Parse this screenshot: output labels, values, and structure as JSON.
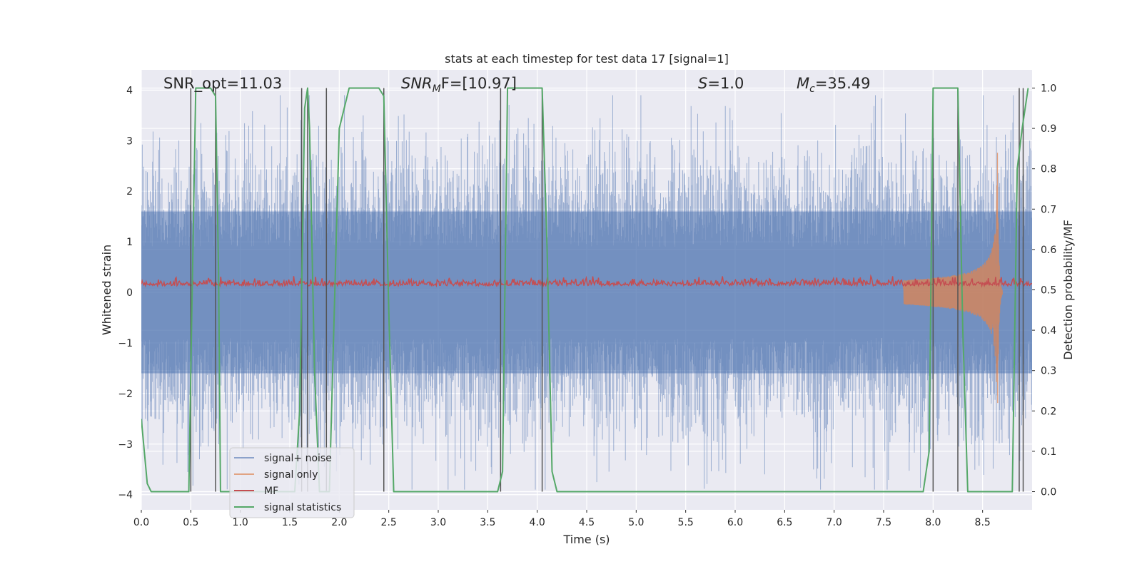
{
  "chart_data": {
    "type": "line",
    "title": "stats at each timestep for test data 17 [signal=1]",
    "xlabel": "Time (s)",
    "ylabel": "Whitened strain",
    "y2label": "Detection probability/MF",
    "xlim": [
      0.0,
      9.0
    ],
    "ylim": [
      -4.3,
      4.4
    ],
    "y2lim": [
      -0.045,
      1.045
    ],
    "x_ticks": [
      0.0,
      0.5,
      1.0,
      1.5,
      2.0,
      2.5,
      3.0,
      3.5,
      4.0,
      4.5,
      5.0,
      5.5,
      6.0,
      6.5,
      7.0,
      7.5,
      8.0,
      8.5
    ],
    "x_tick_labels": [
      "0.0",
      "0.5",
      "1.0",
      "1.5",
      "2.0",
      "2.5",
      "3.0",
      "3.5",
      "4.0",
      "4.5",
      "5.0",
      "5.5",
      "6.0",
      "6.5",
      "7.0",
      "7.5",
      "8.0",
      "8.5"
    ],
    "y_ticks": [
      4,
      3,
      2,
      1,
      0,
      -1,
      -2,
      -3,
      -4
    ],
    "y_tick_labels": [
      "4",
      "3",
      "2",
      "1",
      "0",
      "−1",
      "−2",
      "−3",
      "−4"
    ],
    "y2_ticks": [
      1.0,
      0.9,
      0.8,
      0.7,
      0.6,
      0.5,
      0.4,
      0.3,
      0.2,
      0.1,
      0.0
    ],
    "y2_tick_labels": [
      "1.0",
      "0.9",
      "0.8",
      "0.7",
      "0.6",
      "0.5",
      "0.4",
      "0.3",
      "0.2",
      "0.1",
      "0.0"
    ],
    "grid": true,
    "legend_placement": "lower-left",
    "annotations": {
      "snr_opt": "SNR_opt=11.03",
      "snr_mf_var": "SNR",
      "snr_mf_sub": "M",
      "snr_mf_rest": "F=[10.97]",
      "s_var": "S",
      "s_rest": "=1.0",
      "mc_var": "M",
      "mc_sub": "c",
      "mc_rest": "=35.49"
    },
    "series": [
      {
        "name": "signal+ noise",
        "axis": "left",
        "color": "#4c72b0",
        "noise_envelope": {
          "x": [
            0.0,
            9.0
          ],
          "core_band": [
            -1.6,
            1.6
          ],
          "peak_extent": [
            -3.9,
            3.9
          ]
        }
      },
      {
        "name": "signal only",
        "axis": "left",
        "color": "#dd8452",
        "chirp": {
          "start": 7.7,
          "merger": 8.65,
          "end": 8.7,
          "peak_amplitude": 2.8
        }
      },
      {
        "name": "MF",
        "axis": "left",
        "color": "#c44e52",
        "band": [
          0.05,
          0.35
        ]
      },
      {
        "name": "signal statistics",
        "axis": "right",
        "color": "#55a868",
        "x": [
          0.0,
          0.06,
          0.1,
          0.2,
          0.3,
          0.4,
          0.48,
          0.5,
          0.55,
          0.6,
          0.7,
          0.75,
          0.78,
          0.8,
          0.9,
          1.0,
          1.2,
          1.4,
          1.55,
          1.6,
          1.65,
          1.68,
          1.7,
          1.75,
          1.8,
          1.9,
          1.95,
          2.0,
          2.1,
          2.2,
          2.3,
          2.4,
          2.45,
          2.5,
          2.55,
          2.6,
          3.0,
          3.4,
          3.6,
          3.65,
          3.7,
          3.8,
          3.9,
          4.0,
          4.05,
          4.1,
          4.15,
          4.2,
          5.0,
          6.0,
          7.0,
          7.9,
          7.96,
          8.0,
          8.05,
          8.1,
          8.2,
          8.25,
          8.3,
          8.35,
          8.4,
          8.5,
          8.7,
          8.8,
          8.85,
          8.9,
          8.96
        ],
        "y": [
          0.18,
          0.02,
          0.0,
          0.0,
          0.0,
          0.0,
          0.0,
          0.3,
          1.0,
          1.0,
          1.0,
          0.98,
          0.55,
          0.0,
          0.0,
          0.0,
          0.0,
          0.0,
          0.0,
          0.2,
          0.95,
          1.0,
          0.9,
          0.3,
          0.0,
          0.0,
          0.45,
          0.9,
          1.0,
          1.0,
          1.0,
          1.0,
          0.98,
          0.45,
          0.0,
          0.0,
          0.0,
          0.0,
          0.0,
          0.05,
          1.0,
          1.0,
          1.0,
          1.0,
          1.0,
          0.6,
          0.05,
          0.0,
          0.0,
          0.0,
          0.0,
          0.0,
          0.1,
          1.0,
          1.0,
          1.0,
          1.0,
          1.0,
          0.4,
          0.0,
          0.0,
          0.0,
          0.0,
          0.0,
          0.8,
          0.9,
          1.0
        ]
      }
    ],
    "detection_markers": {
      "color": "#555555",
      "x": [
        0.5,
        0.75,
        1.62,
        1.68,
        1.87,
        2.45,
        3.63,
        4.05,
        8.0,
        8.25,
        8.87,
        8.91
      ]
    }
  }
}
